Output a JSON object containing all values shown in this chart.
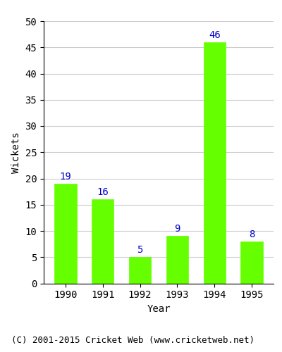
{
  "years": [
    "1990",
    "1991",
    "1992",
    "1993",
    "1994",
    "1995"
  ],
  "values": [
    19,
    16,
    5,
    9,
    46,
    8
  ],
  "bar_color": "#66ff00",
  "bar_edgecolor": "#66ff00",
  "label_color": "#0000cc",
  "xlabel": "Year",
  "ylabel": "Wickets",
  "ylim": [
    0,
    50
  ],
  "yticks": [
    0,
    5,
    10,
    15,
    20,
    25,
    30,
    35,
    40,
    45,
    50
  ],
  "axis_label_fontsize": 10,
  "tick_fontsize": 10,
  "value_label_fontsize": 10,
  "footer_text": "(C) 2001-2015 Cricket Web (www.cricketweb.net)",
  "footer_fontsize": 9,
  "background_color": "#ffffff",
  "grid_color": "#cccccc"
}
